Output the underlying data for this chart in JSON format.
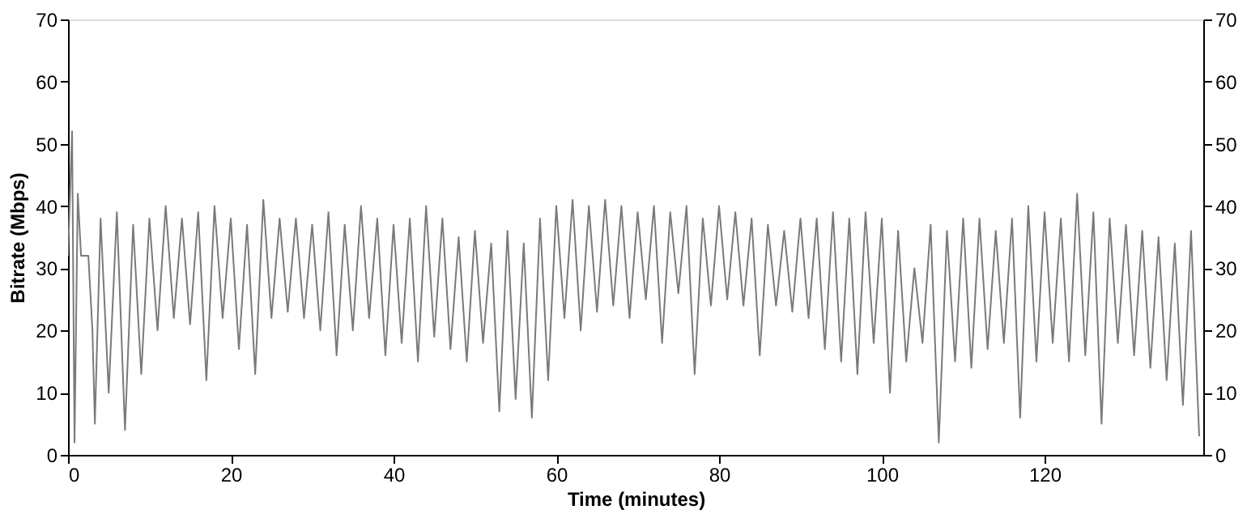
{
  "chart_data": {
    "type": "line",
    "xlabel": "Time (minutes)",
    "ylabel": "Bitrate (Mbps)",
    "xlim": [
      0,
      139.5
    ],
    "xticks": [
      0,
      20,
      40,
      60,
      80,
      100,
      120
    ],
    "ylim": [
      0,
      70
    ],
    "yticks": [
      0,
      10,
      20,
      30,
      40,
      50,
      60,
      70
    ],
    "y2lim": [
      0,
      70
    ],
    "y2ticks": [
      0,
      10,
      20,
      30,
      40,
      50,
      60,
      70
    ],
    "grid": false,
    "marker": "none",
    "line_style": "solid",
    "series": [
      {
        "color": "#7a7a7a",
        "x": [
          0,
          0.5,
          0.8,
          1.2,
          1.6,
          2.5,
          3,
          3.3,
          4,
          5,
          6,
          7,
          8,
          9,
          10,
          11,
          12,
          13,
          14,
          15,
          16,
          17,
          18,
          19,
          20,
          21,
          22,
          23,
          24,
          25,
          26,
          27,
          28,
          29,
          30,
          31,
          32,
          33,
          34,
          35,
          36,
          37,
          38,
          39,
          40,
          41,
          42,
          43,
          44,
          45,
          46,
          47,
          48,
          49,
          50,
          51,
          52,
          53,
          54,
          55,
          56,
          57,
          58,
          59,
          60,
          61,
          62,
          63,
          64,
          65,
          66,
          67,
          68,
          69,
          70,
          71,
          72,
          73,
          74,
          75,
          76,
          77,
          78,
          79,
          80,
          81,
          82,
          83,
          84,
          85,
          86,
          87,
          88,
          89,
          90,
          91,
          92,
          93,
          94,
          95,
          96,
          97,
          98,
          99,
          100,
          101,
          102,
          103,
          104,
          105,
          106,
          107,
          108,
          109,
          110,
          111,
          112,
          113,
          114,
          115,
          116,
          117,
          118,
          119,
          120,
          121,
          122,
          123,
          124,
          125,
          126,
          127,
          128,
          129,
          130,
          131,
          132,
          133,
          134,
          135,
          136,
          137,
          138,
          139
        ],
        "values": [
          32,
          52,
          2,
          42,
          32,
          32,
          20,
          5,
          38,
          10,
          39,
          4,
          37,
          13,
          38,
          20,
          40,
          22,
          38,
          21,
          39,
          12,
          40,
          22,
          38,
          17,
          37,
          13,
          41,
          22,
          38,
          23,
          38,
          22,
          37,
          20,
          39,
          16,
          37,
          20,
          40,
          22,
          38,
          16,
          37,
          18,
          38,
          15,
          40,
          19,
          38,
          17,
          35,
          15,
          36,
          18,
          34,
          7,
          36,
          9,
          34,
          6,
          38,
          12,
          40,
          22,
          41,
          20,
          40,
          23,
          41,
          24,
          40,
          22,
          39,
          25,
          40,
          18,
          39,
          26,
          40,
          13,
          38,
          24,
          40,
          25,
          39,
          24,
          38,
          16,
          37,
          24,
          36,
          23,
          38,
          22,
          38,
          17,
          39,
          15,
          38,
          13,
          39,
          18,
          38,
          10,
          36,
          15,
          30,
          18,
          37,
          2,
          36,
          15,
          38,
          14,
          38,
          17,
          36,
          18,
          38,
          6,
          40,
          15,
          39,
          18,
          38,
          15,
          42,
          16,
          39,
          5,
          38,
          18,
          37,
          16,
          36,
          14,
          35,
          12,
          34,
          8,
          36,
          3
        ]
      }
    ]
  }
}
